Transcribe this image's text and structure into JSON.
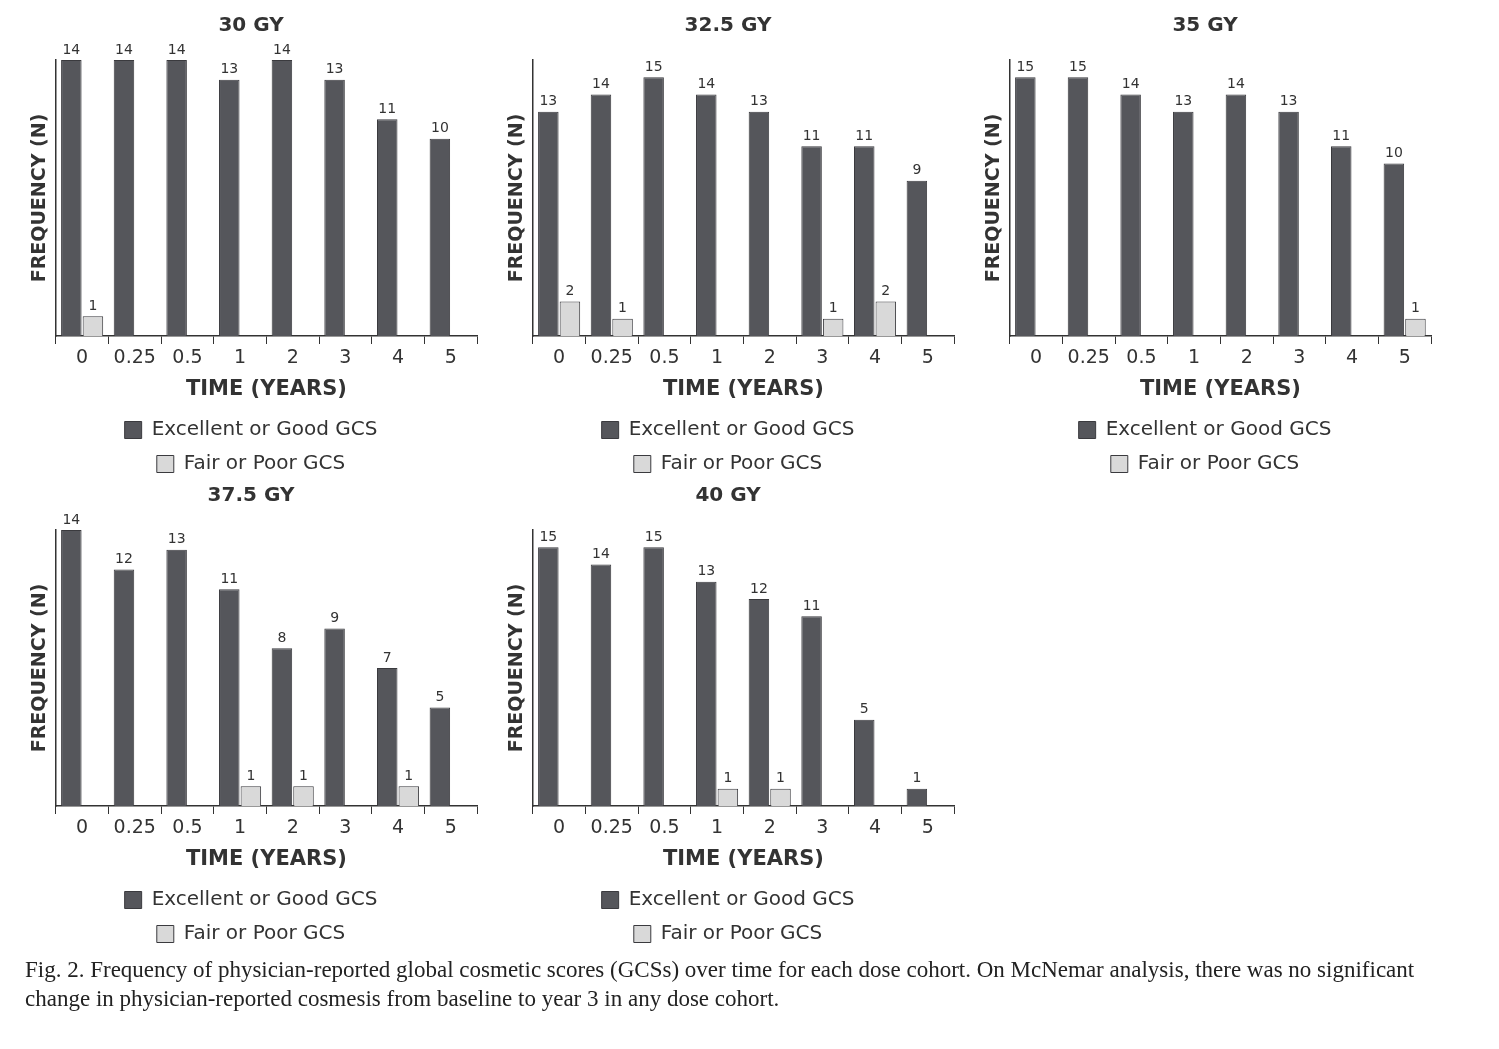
{
  "chart_data": [
    {
      "type": "bar",
      "title": "30 GY",
      "xlabel": "TIME (YEARS)",
      "ylabel": "FREQUENCY (N)",
      "categories": [
        "0",
        "0.25",
        "0.5",
        "1",
        "2",
        "3",
        "4",
        "5"
      ],
      "series": [
        {
          "name": "Excellent or Good GCS",
          "color": "#55565b",
          "values": [
            14,
            14,
            14,
            13,
            14,
            13,
            11,
            10
          ]
        },
        {
          "name": "Fair or Poor GCS",
          "color": "#d9d9d9",
          "values": [
            1,
            null,
            null,
            null,
            null,
            null,
            null,
            null
          ]
        }
      ],
      "data_labels": true,
      "legend": "bottom",
      "tick_labels": "x",
      "grid": false
    },
    {
      "type": "bar",
      "title": "32.5 GY",
      "xlabel": "TIME (YEARS)",
      "ylabel": "FREQUENCY (N)",
      "categories": [
        "0",
        "0.25",
        "0.5",
        "1",
        "2",
        "3",
        "4",
        "5"
      ],
      "series": [
        {
          "name": "Excellent or Good GCS",
          "color": "#55565b",
          "values": [
            13,
            14,
            15,
            14,
            13,
            11,
            11,
            9
          ]
        },
        {
          "name": "Fair or Poor GCS",
          "color": "#d9d9d9",
          "values": [
            2,
            1,
            null,
            null,
            null,
            1,
            2,
            null
          ]
        }
      ],
      "data_labels": true,
      "legend": "bottom",
      "tick_labels": "x",
      "grid": false
    },
    {
      "type": "bar",
      "title": "35 GY",
      "xlabel": "TIME (YEARS)",
      "ylabel": "FREQUENCY (N)",
      "categories": [
        "0",
        "0.25",
        "0.5",
        "1",
        "2",
        "3",
        "4",
        "5"
      ],
      "series": [
        {
          "name": "Excellent or Good GCS",
          "color": "#55565b",
          "values": [
            15,
            15,
            14,
            13,
            14,
            13,
            11,
            10
          ]
        },
        {
          "name": "Fair or Poor GCS",
          "color": "#d9d9d9",
          "values": [
            null,
            null,
            null,
            null,
            null,
            null,
            null,
            1
          ]
        }
      ],
      "data_labels": true,
      "legend": "bottom",
      "tick_labels": "x",
      "grid": false
    },
    {
      "type": "bar",
      "title": "37.5 GY",
      "xlabel": "TIME (YEARS)",
      "ylabel": "FREQUENCY (N)",
      "categories": [
        "0",
        "0.25",
        "0.5",
        "1",
        "2",
        "3",
        "4",
        "5"
      ],
      "series": [
        {
          "name": "Excellent or Good GCS",
          "color": "#55565b",
          "values": [
            14,
            12,
            13,
            11,
            8,
            9,
            7,
            5
          ]
        },
        {
          "name": "Fair or Poor GCS",
          "color": "#d9d9d9",
          "values": [
            null,
            null,
            null,
            1,
            1,
            null,
            1,
            null
          ]
        }
      ],
      "data_labels": true,
      "legend": "bottom",
      "tick_labels": "x",
      "grid": false
    },
    {
      "type": "bar",
      "title": "40 GY",
      "xlabel": "TIME (YEARS)",
      "ylabel": "FREQUENCY (N)",
      "categories": [
        "0",
        "0.25",
        "0.5",
        "1",
        "2",
        "3",
        "4",
        "5"
      ],
      "series": [
        {
          "name": "Excellent or Good GCS",
          "color": "#55565b",
          "values": [
            15,
            14,
            15,
            13,
            12,
            11,
            5,
            1
          ]
        },
        {
          "name": "Fair or Poor GCS",
          "color": "#d9d9d9",
          "values": [
            null,
            null,
            null,
            1,
            1,
            null,
            null,
            null
          ]
        }
      ],
      "data_labels": true,
      "legend": "bottom",
      "tick_labels": "x",
      "grid": false,
      "annotations": [
        "Fig. 2. Frequency of physician-reported global cosmetic scores (GCSs) over time for each dose cohort. On McNemar analysis, there was no significant change in physician-reported cosmesis from baseline to year 3 in any dose cohort."
      ]
    }
  ]
}
